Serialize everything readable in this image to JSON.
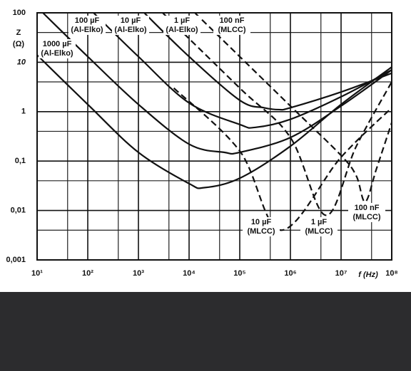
{
  "chart_data": {
    "type": "line",
    "y_label": "Z",
    "y_unit": "(Ω)",
    "x_label": "f (Hz)",
    "log_x": true,
    "log_y": true,
    "grid": true,
    "xlim": [
      10,
      100000000
    ],
    "ylim": [
      0.001,
      100
    ],
    "xticks": [
      {
        "value": 10,
        "label": "10¹"
      },
      {
        "value": 100,
        "label": "10²"
      },
      {
        "value": 1000,
        "label": "10³"
      },
      {
        "value": 10000,
        "label": "10⁴"
      },
      {
        "value": 100000,
        "label": "10⁵"
      },
      {
        "value": 1000000,
        "label": "10⁶"
      },
      {
        "value": 10000000,
        "label": "10⁷"
      },
      {
        "value": 100000000,
        "label": "10⁸"
      }
    ],
    "yticks": [
      100,
      10,
      1,
      {
        "value": 0.1,
        "label": "0,1"
      },
      {
        "value": 0.01,
        "label": "0,01"
      },
      {
        "value": 0.001,
        "label": "0,001"
      }
    ],
    "xminor": [
      40,
      400,
      4000,
      40000,
      400000,
      4000000,
      40000000
    ],
    "yminor": [
      40,
      4,
      0.4,
      0.04,
      0.004
    ],
    "series": [
      {
        "name": "1000 µF",
        "kind": "(Al-Elko)",
        "color": "#111111",
        "dash": false,
        "x": [
          10,
          100,
          1000,
          10000,
          20000,
          100000,
          1000000,
          10000000,
          100000000
        ],
        "values": [
          14,
          1.4,
          0.15,
          0.035,
          0.029,
          0.045,
          0.2,
          1.4,
          8
        ]
      },
      {
        "name": "100 µF",
        "kind": "(Al-Elko)",
        "color": "#111111",
        "dash": false,
        "x": [
          13,
          100,
          1000,
          10000,
          50000,
          100000,
          1000000,
          10000000,
          100000000
        ],
        "values": [
          100,
          13,
          1.4,
          0.22,
          0.15,
          0.15,
          0.3,
          1.3,
          7
        ]
      },
      {
        "name": "10 µF",
        "kind": "(Al-Elko)",
        "color": "#111111",
        "dash": false,
        "x": [
          130,
          1000,
          10000,
          100000,
          200000,
          1000000,
          10000000,
          100000000
        ],
        "values": [
          100,
          13,
          1.5,
          0.55,
          0.48,
          0.7,
          2,
          7
        ]
      },
      {
        "name": "1 µF",
        "kind": "(Al-Elko)",
        "color": "#111111",
        "dash": false,
        "x": [
          1300,
          10000,
          100000,
          300000,
          600000,
          1000000,
          10000000,
          100000000
        ],
        "values": [
          100,
          13,
          1.7,
          1.2,
          1.1,
          1.2,
          2.5,
          6
        ]
      },
      {
        "name": "100 nF",
        "kind": "(MLCC)",
        "color": "#111111",
        "dash": true,
        "x": [
          13000,
          100000,
          1000000,
          10000000,
          20000000,
          30000000,
          50000000,
          100000000
        ],
        "values": [
          100,
          13,
          1.3,
          0.13,
          0.05,
          0.015,
          0.07,
          0.6
        ]
      },
      {
        "name": "10 µF",
        "kind": "(MLCC)",
        "color": "#111111",
        "dash": true,
        "x": [
          5000,
          100000,
          650000,
          10000000,
          100000000
        ],
        "values": [
          3,
          0.16,
          0.004,
          0.12,
          1.2
        ]
      },
      {
        "name": "1 µF",
        "kind": "(MLCC)",
        "color": "#111111",
        "dash": true,
        "x": [
          3000,
          100000,
          1000000,
          5000000,
          20000000,
          100000000
        ],
        "values": [
          100,
          3,
          0.3,
          0.008,
          0.2,
          4
        ]
      }
    ],
    "annotations": [
      {
        "text": [
          "100 nF",
          "(MLCC)"
        ]
      }
    ]
  }
}
